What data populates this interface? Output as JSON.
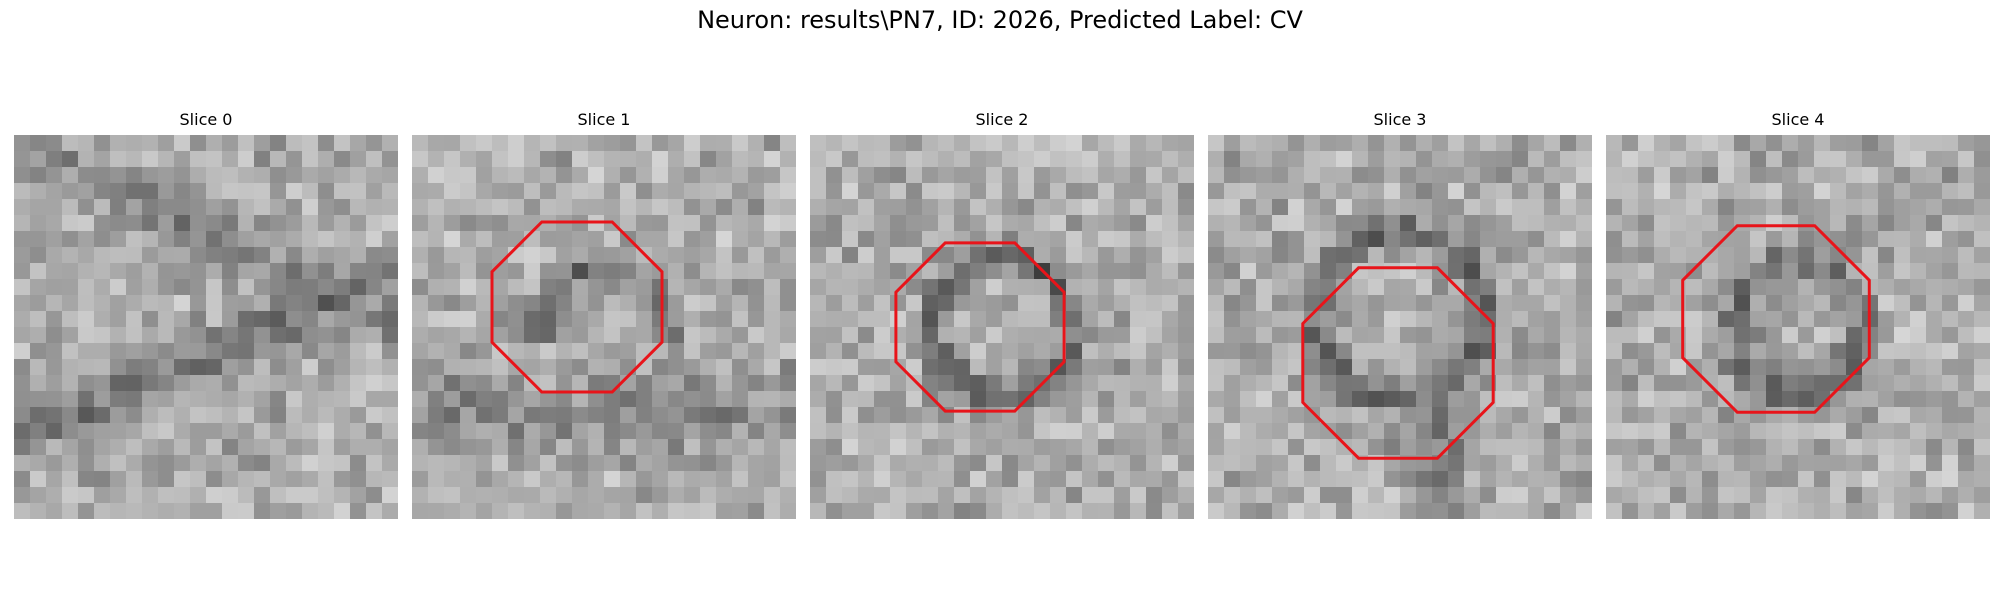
{
  "figure": {
    "title": "Neuron: results\\PN7, ID: 2026, Predicted Label: CV"
  },
  "overlay_color": "#e8141a",
  "panels": [
    {
      "title": "Slice 0",
      "has_octagon": false,
      "seed": 11,
      "pattern": "streaks",
      "darkness": 0.35
    },
    {
      "title": "Slice 1",
      "has_octagon": true,
      "seed": 23,
      "pattern": "arc",
      "darkness": 0.4
    },
    {
      "title": "Slice 2",
      "has_octagon": true,
      "seed": 37,
      "pattern": "ring",
      "darkness": 0.45
    },
    {
      "title": "Slice 3",
      "has_octagon": true,
      "seed": 51,
      "pattern": "ring-low",
      "darkness": 0.45
    },
    {
      "title": "Slice 4",
      "has_octagon": true,
      "seed": 67,
      "pattern": "ring-soft",
      "darkness": 0.4
    }
  ]
}
